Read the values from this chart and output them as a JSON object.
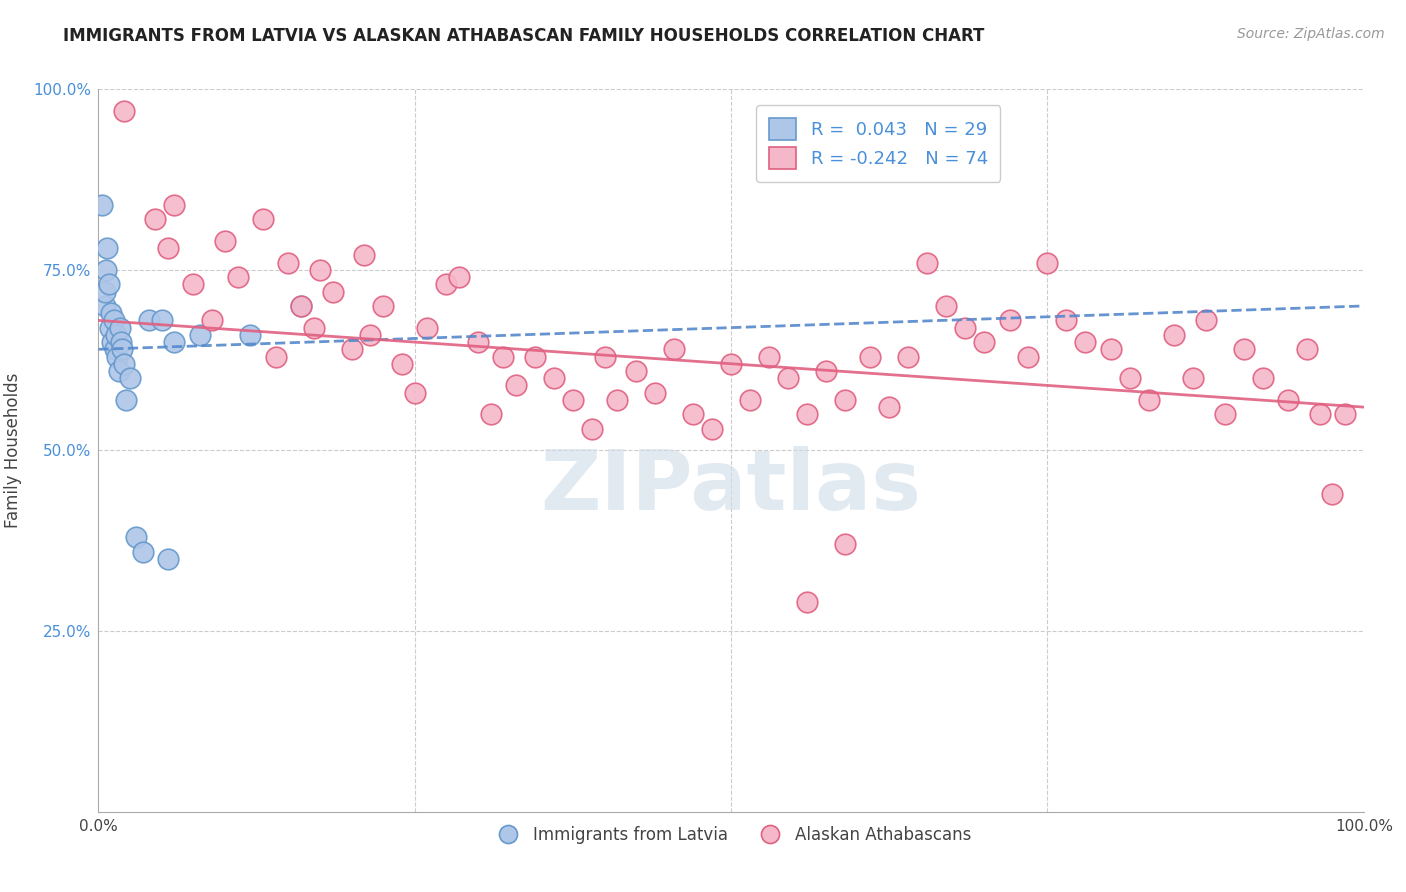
{
  "title": "IMMIGRANTS FROM LATVIA VS ALASKAN ATHABASCAN FAMILY HOUSEHOLDS CORRELATION CHART",
  "source": "Source: ZipAtlas.com",
  "ylabel": "Family Households",
  "blue_R": 0.043,
  "blue_N": 29,
  "pink_R": -0.242,
  "pink_N": 74,
  "blue_color": "#aec6e8",
  "pink_color": "#f5b8ca",
  "blue_edge_color": "#6699cc",
  "pink_edge_color": "#e06080",
  "blue_line_color": "#5588cc",
  "pink_line_color": "#e06080",
  "background_color": "#ffffff",
  "grid_color": "#cccccc",
  "watermark_color": "#d0dce8",
  "title_color": "#222222",
  "source_color": "#999999",
  "ylabel_color": "#444444",
  "tick_color": "#4a90d9",
  "blue_x": [
    0.003,
    0.005,
    0.005,
    0.006,
    0.007,
    0.008,
    0.009,
    0.01,
    0.011,
    0.012,
    0.013,
    0.014,
    0.015,
    0.016,
    0.017,
    0.018,
    0.019,
    0.02,
    0.022,
    0.025,
    0.03,
    0.035,
    0.04,
    0.05,
    0.055,
    0.06,
    0.08,
    0.12,
    0.16
  ],
  "blue_y": [
    0.84,
    0.7,
    0.72,
    0.75,
    0.78,
    0.73,
    0.67,
    0.69,
    0.65,
    0.68,
    0.64,
    0.66,
    0.63,
    0.61,
    0.67,
    0.65,
    0.64,
    0.62,
    0.57,
    0.6,
    0.38,
    0.36,
    0.68,
    0.68,
    0.35,
    0.65,
    0.66,
    0.66,
    0.7
  ],
  "pink_x": [
    0.02,
    0.045,
    0.055,
    0.06,
    0.075,
    0.09,
    0.1,
    0.11,
    0.13,
    0.14,
    0.15,
    0.16,
    0.17,
    0.175,
    0.185,
    0.2,
    0.21,
    0.215,
    0.225,
    0.24,
    0.25,
    0.26,
    0.275,
    0.285,
    0.3,
    0.31,
    0.32,
    0.33,
    0.345,
    0.36,
    0.375,
    0.39,
    0.4,
    0.41,
    0.425,
    0.44,
    0.455,
    0.47,
    0.485,
    0.5,
    0.515,
    0.53,
    0.545,
    0.56,
    0.575,
    0.59,
    0.61,
    0.625,
    0.64,
    0.655,
    0.67,
    0.685,
    0.7,
    0.72,
    0.735,
    0.75,
    0.765,
    0.78,
    0.8,
    0.815,
    0.83,
    0.85,
    0.865,
    0.875,
    0.89,
    0.905,
    0.92,
    0.94,
    0.955,
    0.965,
    0.975,
    0.985,
    0.56,
    0.59
  ],
  "pink_y": [
    0.97,
    0.82,
    0.78,
    0.84,
    0.73,
    0.68,
    0.79,
    0.74,
    0.82,
    0.63,
    0.76,
    0.7,
    0.67,
    0.75,
    0.72,
    0.64,
    0.77,
    0.66,
    0.7,
    0.62,
    0.58,
    0.67,
    0.73,
    0.74,
    0.65,
    0.55,
    0.63,
    0.59,
    0.63,
    0.6,
    0.57,
    0.53,
    0.63,
    0.57,
    0.61,
    0.58,
    0.64,
    0.55,
    0.53,
    0.62,
    0.57,
    0.63,
    0.6,
    0.55,
    0.61,
    0.57,
    0.63,
    0.56,
    0.63,
    0.76,
    0.7,
    0.67,
    0.65,
    0.68,
    0.63,
    0.76,
    0.68,
    0.65,
    0.64,
    0.6,
    0.57,
    0.66,
    0.6,
    0.68,
    0.55,
    0.64,
    0.6,
    0.57,
    0.64,
    0.55,
    0.44,
    0.55,
    0.29,
    0.37
  ]
}
